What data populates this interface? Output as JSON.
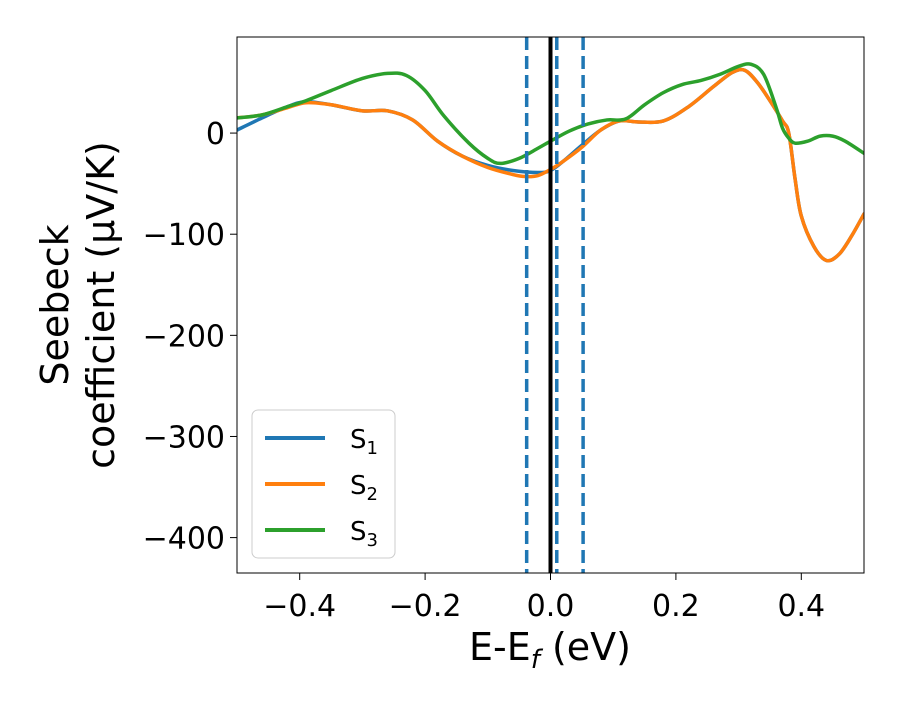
{
  "chart_data": {
    "type": "line",
    "xlabel": "E-E",
    "xlabel_sub": "f",
    "xlabel_unit": " (eV)",
    "ylabel_line1": "Seebeck",
    "ylabel_line2": "coefficient  (μV/K)",
    "xlim": [
      -0.5,
      0.5
    ],
    "ylim": [
      -435,
      95
    ],
    "xticks": [
      -0.4,
      -0.2,
      0.0,
      0.2,
      0.4
    ],
    "xtick_labels": [
      "−0.4",
      "−0.2",
      "0.0",
      "0.2",
      "0.4"
    ],
    "yticks": [
      0,
      -100,
      -200,
      -300,
      -400
    ],
    "ytick_labels": [
      "0",
      "−100",
      "−200",
      "−300",
      "−400"
    ],
    "grid": false,
    "legend_position": "lower-left",
    "vlines": [
      {
        "x": 0.0,
        "style": "solid",
        "color": "#000000"
      },
      {
        "x": -0.038,
        "style": "dashed",
        "color": "#1f77b4"
      },
      {
        "x": 0.01,
        "style": "dashed",
        "color": "#1f77b4"
      },
      {
        "x": 0.052,
        "style": "dashed",
        "color": "#1f77b4"
      }
    ],
    "series": [
      {
        "name": "S",
        "sub": "1",
        "color": "#1f77b4",
        "points": [
          [
            -0.5,
            3
          ],
          [
            -0.46,
            15
          ],
          [
            -0.42,
            26
          ],
          [
            -0.39,
            31
          ],
          [
            -0.35,
            28
          ],
          [
            -0.3,
            22
          ],
          [
            -0.26,
            22
          ],
          [
            -0.22,
            13
          ],
          [
            -0.18,
            -8
          ],
          [
            -0.14,
            -23
          ],
          [
            -0.1,
            -32
          ],
          [
            -0.06,
            -37
          ],
          [
            -0.02,
            -39
          ],
          [
            0.0,
            -37
          ],
          [
            0.02,
            -28
          ],
          [
            0.05,
            -12
          ],
          [
            0.08,
            3
          ],
          [
            0.11,
            12
          ],
          [
            0.14,
            11
          ],
          [
            0.18,
            12
          ],
          [
            0.22,
            26
          ],
          [
            0.26,
            46
          ],
          [
            0.29,
            60
          ],
          [
            0.31,
            62
          ],
          [
            0.33,
            50
          ],
          [
            0.35,
            32
          ],
          [
            0.37,
            12
          ],
          [
            0.38,
            0
          ],
          [
            0.39,
            -45
          ],
          [
            0.4,
            -82
          ],
          [
            0.42,
            -112
          ],
          [
            0.44,
            -126
          ],
          [
            0.46,
            -120
          ],
          [
            0.48,
            -102
          ],
          [
            0.5,
            -80
          ]
        ]
      },
      {
        "name": "S",
        "sub": "2",
        "color": "#ff7f0e",
        "points": [
          [
            -0.5,
            15
          ],
          [
            -0.46,
            18
          ],
          [
            -0.42,
            25
          ],
          [
            -0.39,
            30
          ],
          [
            -0.35,
            28
          ],
          [
            -0.3,
            22
          ],
          [
            -0.26,
            22
          ],
          [
            -0.22,
            13
          ],
          [
            -0.18,
            -8
          ],
          [
            -0.14,
            -23
          ],
          [
            -0.1,
            -34
          ],
          [
            -0.06,
            -41
          ],
          [
            -0.04,
            -43
          ],
          [
            -0.02,
            -42
          ],
          [
            0.0,
            -36
          ],
          [
            0.02,
            -28
          ],
          [
            0.05,
            -14
          ],
          [
            0.08,
            3
          ],
          [
            0.11,
            12
          ],
          [
            0.14,
            11
          ],
          [
            0.18,
            12
          ],
          [
            0.22,
            26
          ],
          [
            0.26,
            46
          ],
          [
            0.29,
            60
          ],
          [
            0.31,
            62
          ],
          [
            0.33,
            50
          ],
          [
            0.35,
            32
          ],
          [
            0.37,
            12
          ],
          [
            0.38,
            0
          ],
          [
            0.39,
            -45
          ],
          [
            0.4,
            -82
          ],
          [
            0.42,
            -112
          ],
          [
            0.44,
            -126
          ],
          [
            0.46,
            -120
          ],
          [
            0.48,
            -102
          ],
          [
            0.5,
            -80
          ]
        ]
      },
      {
        "name": "S",
        "sub": "3",
        "color": "#2ca02c",
        "points": [
          [
            -0.5,
            15
          ],
          [
            -0.46,
            18
          ],
          [
            -0.42,
            26
          ],
          [
            -0.39,
            32
          ],
          [
            -0.35,
            42
          ],
          [
            -0.3,
            54
          ],
          [
            -0.26,
            59
          ],
          [
            -0.23,
            57
          ],
          [
            -0.2,
            42
          ],
          [
            -0.17,
            17
          ],
          [
            -0.13,
            -10
          ],
          [
            -0.1,
            -25
          ],
          [
            -0.08,
            -30
          ],
          [
            -0.05,
            -25
          ],
          [
            -0.02,
            -15
          ],
          [
            0.0,
            -8
          ],
          [
            0.03,
            2
          ],
          [
            0.06,
            9
          ],
          [
            0.09,
            13
          ],
          [
            0.12,
            14
          ],
          [
            0.15,
            28
          ],
          [
            0.18,
            40
          ],
          [
            0.21,
            48
          ],
          [
            0.24,
            52
          ],
          [
            0.27,
            58
          ],
          [
            0.3,
            66
          ],
          [
            0.32,
            68
          ],
          [
            0.34,
            58
          ],
          [
            0.36,
            25
          ],
          [
            0.37,
            5
          ],
          [
            0.38,
            -5
          ],
          [
            0.39,
            -10
          ],
          [
            0.41,
            -8
          ],
          [
            0.43,
            -3
          ],
          [
            0.45,
            -3
          ],
          [
            0.47,
            -8
          ],
          [
            0.5,
            -20
          ]
        ]
      }
    ]
  }
}
